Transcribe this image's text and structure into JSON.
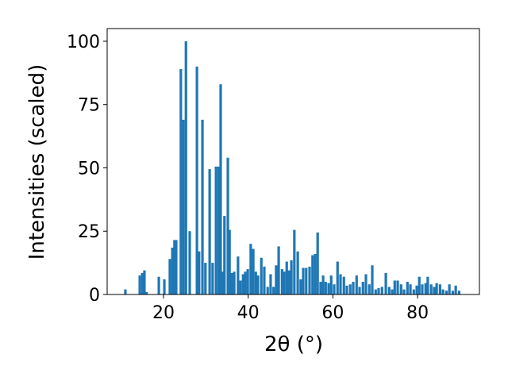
{
  "chart_data": {
    "type": "bar",
    "x_label": "2θ (°)",
    "y_label": "Intensities (scaled)",
    "x": [
      11.0,
      14.4,
      15.0,
      15.5,
      16.0,
      18.9,
      20.2,
      21.5,
      22.1,
      22.6,
      23.0,
      24.1,
      24.7,
      25.3,
      26.2,
      27.9,
      28.4,
      29.2,
      29.9,
      30.9,
      31.6,
      32.4,
      33.0,
      33.5,
      33.9,
      34.4,
      35.2,
      35.6,
      36.1,
      36.7,
      37.6,
      38.2,
      38.8,
      39.3,
      39.9,
      40.6,
      41.2,
      41.8,
      42.3,
      43.1,
      43.8,
      44.6,
      45.3,
      46.0,
      46.6,
      47.2,
      48.0,
      48.5,
      49.1,
      49.6,
      50.2,
      50.9,
      51.7,
      52.4,
      53.0,
      53.7,
      54.5,
      55.2,
      55.8,
      56.4,
      57.1,
      57.7,
      58.3,
      59.0,
      59.6,
      60.3,
      61.1,
      61.8,
      62.6,
      63.3,
      64.1,
      64.8,
      65.6,
      66.3,
      67.1,
      67.8,
      68.6,
      69.3,
      70.1,
      70.8,
      71.6,
      72.5,
      73.3,
      74.0,
      74.6,
      75.3,
      76.1,
      76.8,
      77.6,
      78.3,
      79.1,
      79.8,
      80.4,
      81.1,
      81.9,
      82.4,
      83.2,
      83.9,
      84.5,
      85.3,
      86.0,
      86.8,
      87.5,
      88.3,
      89.0,
      89.8
    ],
    "values": [
      2,
      7.5,
      8.5,
      9.5,
      1,
      7,
      6,
      14,
      18.5,
      21.5,
      21.5,
      89,
      69,
      100,
      25,
      90,
      17,
      69,
      12.5,
      49.5,
      12.5,
      50.5,
      50.5,
      83,
      9,
      31,
      54,
      25.5,
      8.5,
      9,
      15,
      5.5,
      8,
      9,
      10,
      20,
      18,
      9,
      7.5,
      14.5,
      11,
      3,
      8,
      3,
      11.5,
      19,
      10,
      9,
      13,
      9.5,
      13.5,
      25.5,
      17,
      6,
      10.5,
      10.5,
      11,
      15.5,
      16,
      24.5,
      5,
      7.5,
      5,
      4.5,
      7.5,
      4,
      13,
      8,
      7,
      3.5,
      4,
      5,
      7.5,
      3,
      5,
      8,
      4,
      11.5,
      2,
      2.5,
      3,
      8.5,
      3,
      2,
      5.5,
      5.5,
      4,
      2,
      5,
      4,
      2,
      3.5,
      7,
      4,
      4.5,
      7,
      4,
      3,
      4.5,
      4,
      2,
      1.5,
      4,
      1.5,
      3.5,
      1.5
    ],
    "bar_width": 0.6,
    "color": "#1f77b4",
    "xlim": [
      6.7,
      94.6
    ],
    "xticks": [
      20,
      40,
      60,
      80
    ],
    "ylim": [
      0,
      105
    ],
    "yticks": [
      0,
      25,
      50,
      75,
      100
    ]
  }
}
